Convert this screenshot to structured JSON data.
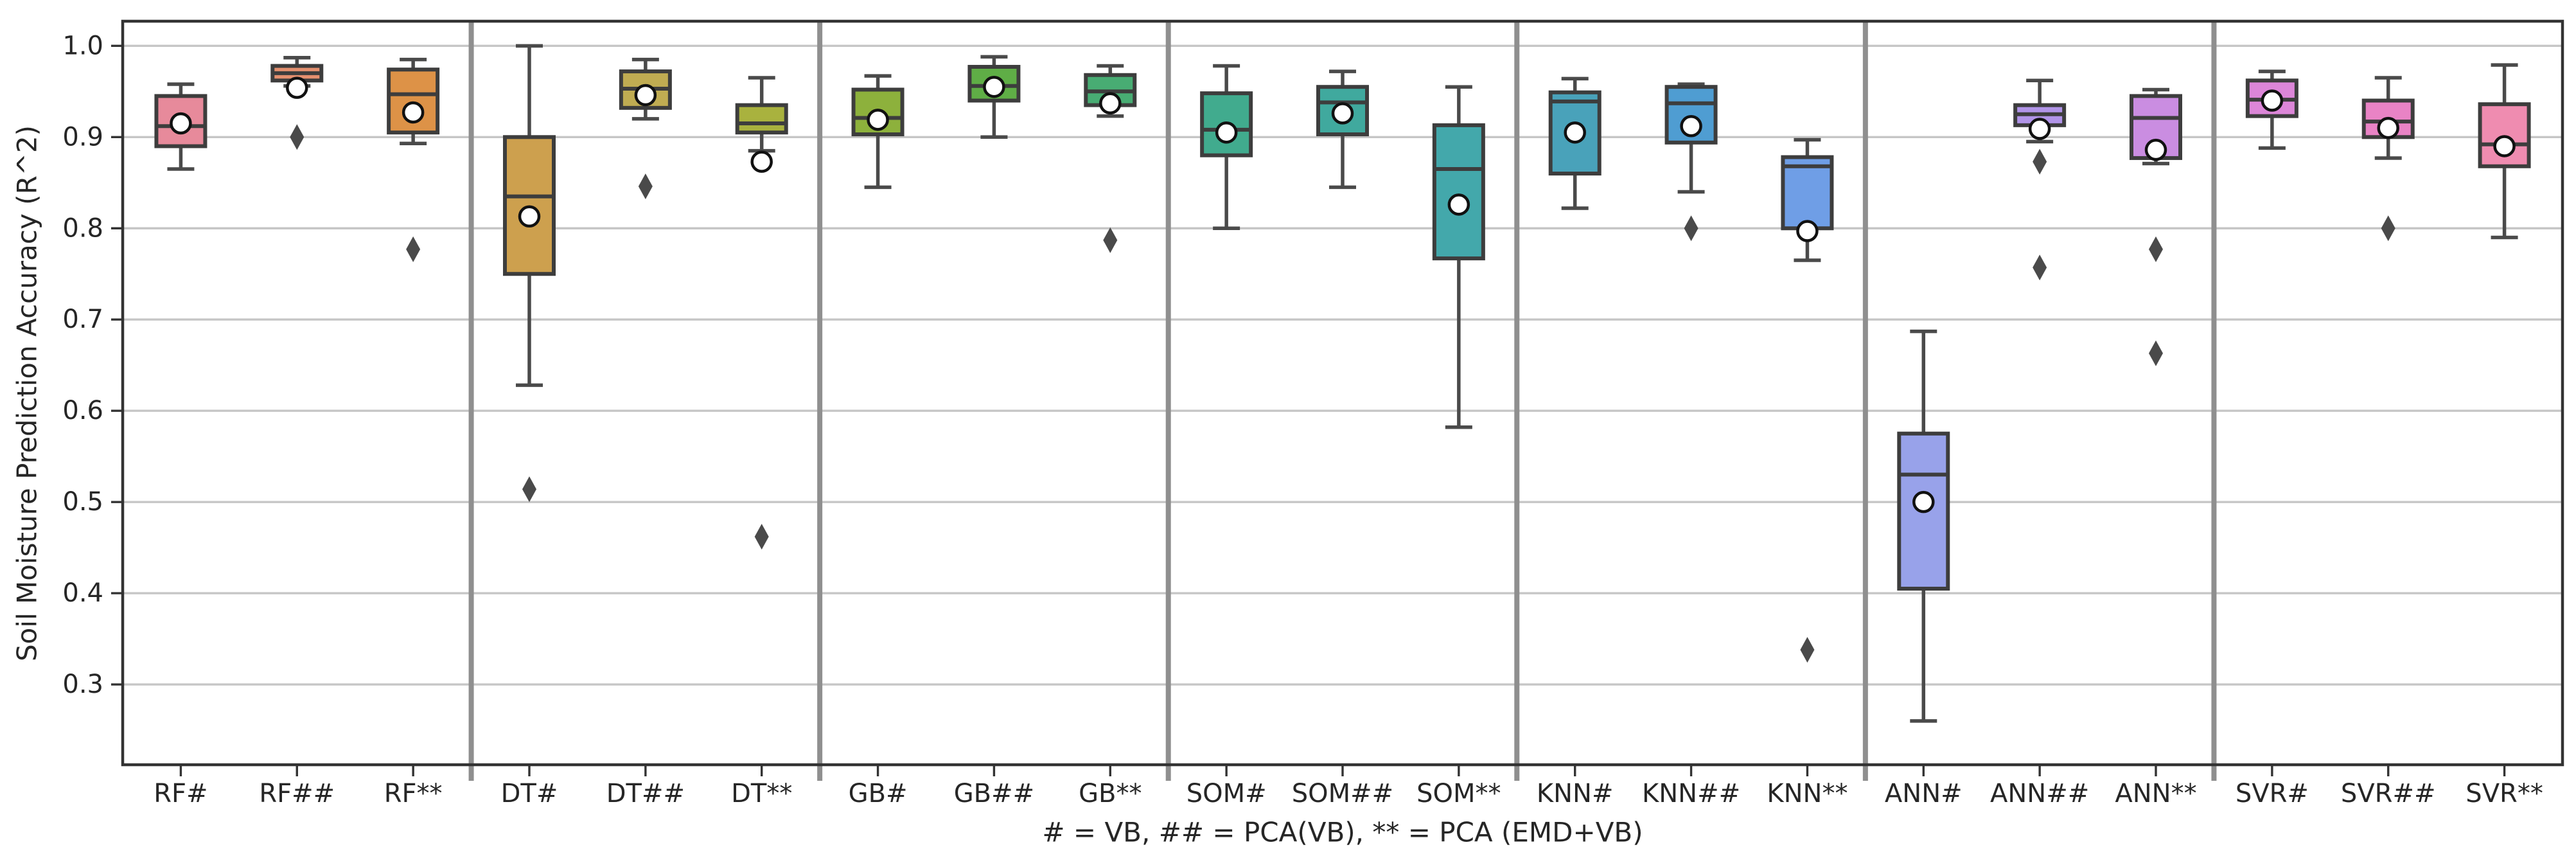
{
  "figure": {
    "ylabel": "Soil Moisture Prediction Accuracy (R^2)",
    "xlabel": "# = VB, ## = PCA(VB), ** = PCA (EMD+VB)"
  },
  "chart_data": {
    "type": "boxplot",
    "title": "",
    "ylabel": "Soil Moisture Prediction Accuracy (R^2)",
    "xlabel": "# = VB, ## = PCA(VB), ** = PCA (EMD+VB)",
    "ylim": [
      0.212,
      1.027
    ],
    "yticks": [
      0.3,
      0.4,
      0.5,
      0.6,
      0.7,
      0.8,
      0.9,
      1.0
    ],
    "grid": "horizontal-gridlines-on",
    "legend": "none",
    "mean_marker": "white-circle",
    "flier_marker": "dark-diamond",
    "group_separators_after": [
      "RF**",
      "DT**",
      "GB**",
      "SOM**",
      "KNN**",
      "ANN**"
    ],
    "boxes": [
      {
        "label": "RF#",
        "color": "#e78a9b",
        "whislo": 0.865,
        "q1": 0.89,
        "med": 0.912,
        "q3": 0.945,
        "whishi": 0.958,
        "mean": 0.915,
        "fliers": []
      },
      {
        "label": "RF##",
        "color": "#e5906f",
        "whislo": 0.956,
        "q1": 0.962,
        "med": 0.97,
        "q3": 0.978,
        "whishi": 0.987,
        "mean": 0.954,
        "fliers": [
          0.9
        ]
      },
      {
        "label": "RF**",
        "color": "#dd9247",
        "whislo": 0.893,
        "q1": 0.905,
        "med": 0.947,
        "q3": 0.974,
        "whishi": 0.985,
        "mean": 0.927,
        "fliers": [
          0.777
        ]
      },
      {
        "label": "DT#",
        "color": "#cda04e",
        "whislo": 0.628,
        "q1": 0.75,
        "med": 0.835,
        "q3": 0.9,
        "whishi": 1.0,
        "mean": 0.813,
        "fliers": [
          0.514
        ]
      },
      {
        "label": "DT##",
        "color": "#c0ac52",
        "whislo": 0.92,
        "q1": 0.932,
        "med": 0.953,
        "q3": 0.972,
        "whishi": 0.985,
        "mean": 0.946,
        "fliers": [
          0.846
        ]
      },
      {
        "label": "DT**",
        "color": "#a9b23e",
        "whislo": 0.885,
        "q1": 0.905,
        "med": 0.915,
        "q3": 0.935,
        "whishi": 0.965,
        "mean": 0.873,
        "fliers": [
          0.462
        ]
      },
      {
        "label": "GB#",
        "color": "#8db13c",
        "whislo": 0.845,
        "q1": 0.903,
        "med": 0.921,
        "q3": 0.952,
        "whishi": 0.967,
        "mean": 0.919,
        "fliers": []
      },
      {
        "label": "GB##",
        "color": "#5fae46",
        "whislo": 0.9,
        "q1": 0.94,
        "med": 0.956,
        "q3": 0.977,
        "whishi": 0.988,
        "mean": 0.955,
        "fliers": []
      },
      {
        "label": "GB**",
        "color": "#48ac73",
        "whislo": 0.923,
        "q1": 0.935,
        "med": 0.95,
        "q3": 0.968,
        "whishi": 0.978,
        "mean": 0.937,
        "fliers": [
          0.787
        ]
      },
      {
        "label": "SOM#",
        "color": "#41ab8e",
        "whislo": 0.8,
        "q1": 0.88,
        "med": 0.908,
        "q3": 0.948,
        "whishi": 0.978,
        "mean": 0.905,
        "fliers": []
      },
      {
        "label": "SOM##",
        "color": "#40a99e",
        "whislo": 0.845,
        "q1": 0.903,
        "med": 0.938,
        "q3": 0.955,
        "whishi": 0.972,
        "mean": 0.926,
        "fliers": []
      },
      {
        "label": "SOM**",
        "color": "#43a8ab",
        "whislo": 0.582,
        "q1": 0.767,
        "med": 0.865,
        "q3": 0.913,
        "whishi": 0.955,
        "mean": 0.826,
        "fliers": []
      },
      {
        "label": "KNN#",
        "color": "#49a2ba",
        "whislo": 0.822,
        "q1": 0.86,
        "med": 0.939,
        "q3": 0.949,
        "whishi": 0.964,
        "mean": 0.905,
        "fliers": []
      },
      {
        "label": "KNN##",
        "color": "#4f9dd2",
        "whislo": 0.84,
        "q1": 0.894,
        "med": 0.937,
        "q3": 0.955,
        "whishi": 0.958,
        "mean": 0.912,
        "fliers": [
          0.8
        ]
      },
      {
        "label": "KNN**",
        "color": "#6f9ee6",
        "whislo": 0.765,
        "q1": 0.8,
        "med": 0.868,
        "q3": 0.878,
        "whishi": 0.897,
        "mean": 0.797,
        "fliers": [
          0.338
        ]
      },
      {
        "label": "ANN#",
        "color": "#98a2ea",
        "whislo": 0.26,
        "q1": 0.405,
        "med": 0.53,
        "q3": 0.575,
        "whishi": 0.687,
        "mean": 0.5,
        "fliers": []
      },
      {
        "label": "ANN##",
        "color": "#b194e8",
        "whislo": 0.895,
        "q1": 0.913,
        "med": 0.925,
        "q3": 0.935,
        "whishi": 0.962,
        "mean": 0.909,
        "fliers": [
          0.873,
          0.757
        ]
      },
      {
        "label": "ANN**",
        "color": "#ca8de1",
        "whislo": 0.871,
        "q1": 0.877,
        "med": 0.921,
        "q3": 0.945,
        "whishi": 0.952,
        "mean": 0.886,
        "fliers": [
          0.777,
          0.663
        ]
      },
      {
        "label": "SVR#",
        "color": "#dc86d8",
        "whislo": 0.888,
        "q1": 0.923,
        "med": 0.941,
        "q3": 0.962,
        "whishi": 0.972,
        "mean": 0.94,
        "fliers": []
      },
      {
        "label": "SVR##",
        "color": "#e983c5",
        "whislo": 0.877,
        "q1": 0.9,
        "med": 0.917,
        "q3": 0.94,
        "whishi": 0.965,
        "mean": 0.91,
        "fliers": [
          0.8
        ]
      },
      {
        "label": "SVR**",
        "color": "#ef8cb0",
        "whislo": 0.79,
        "q1": 0.868,
        "med": 0.892,
        "q3": 0.936,
        "whishi": 0.979,
        "mean": 0.89,
        "fliers": []
      }
    ],
    "style": {
      "box_edge_color": "#3d3d3d",
      "whisker_color": "#4a4a4a",
      "median_color": "#3d3d3d",
      "mean_fill": "#ffffff",
      "mean_edge": "#111111",
      "flier_color": "#4a4a4a",
      "grid_color": "#c6c6c6",
      "spine_color": "#333333",
      "separator_color": "#8f8f8f",
      "tick_text_color": "#262626"
    }
  }
}
